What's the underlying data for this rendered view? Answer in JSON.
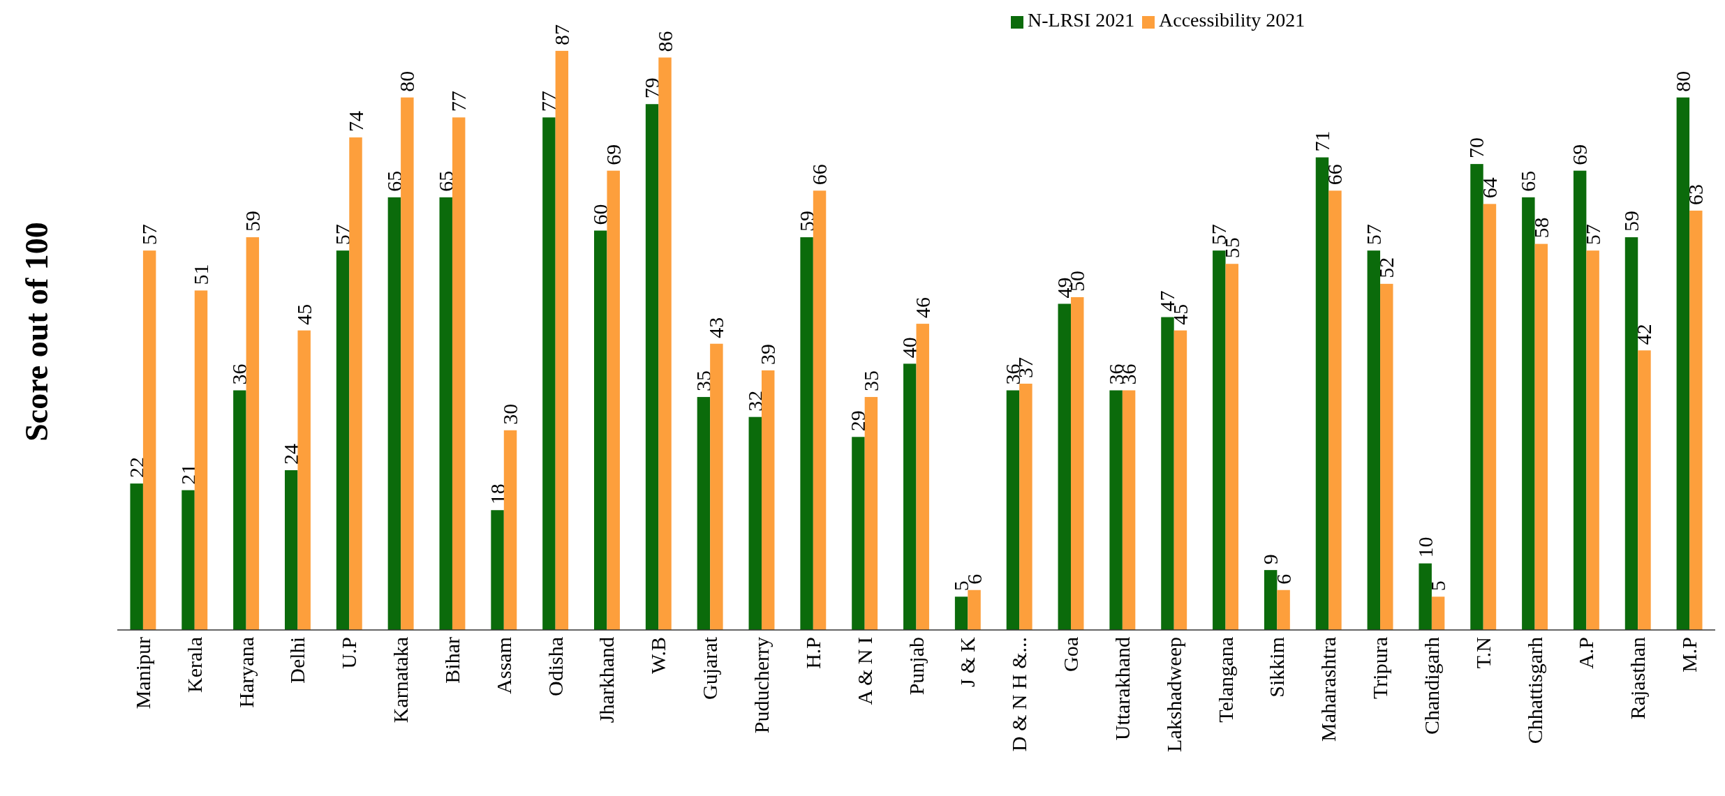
{
  "chart_data": {
    "type": "bar",
    "ylabel": "Score out of 100",
    "categories": [
      "Manipur",
      "Kerala",
      "Haryana",
      "Delhi",
      "U.P",
      "Karnataka",
      "Bihar",
      "Assam",
      "Odisha",
      "Jharkhand",
      "W.B",
      "Gujarat",
      "Puducherry",
      "H.P",
      "A & N I",
      "Punjab",
      "J & K",
      "D & N H &...",
      "Goa",
      "Uttarakhand",
      "Lakshadweep",
      "Telangana",
      "Sikkim",
      "Maharashtra",
      "Tripura",
      "Chandigarh",
      "T.N",
      "Chhattisgarh",
      "A.P",
      "Rajasthan",
      "M.P"
    ],
    "series": [
      {
        "name": "N-LRSI 2021",
        "color": "#0b6b0b",
        "values": [
          22,
          21,
          36,
          24,
          57,
          65,
          65,
          18,
          77,
          60,
          79,
          35,
          32,
          59,
          29,
          40,
          5,
          36,
          49,
          36,
          47,
          57,
          9,
          71,
          57,
          10,
          70,
          65,
          69,
          59,
          80
        ]
      },
      {
        "name": "Accessibility 2021",
        "color": "#fd9f3c",
        "values": [
          57,
          51,
          59,
          45,
          74,
          80,
          77,
          30,
          87,
          69,
          86,
          43,
          39,
          66,
          35,
          46,
          6,
          37,
          50,
          36,
          45,
          55,
          6,
          66,
          52,
          5,
          64,
          58,
          57,
          42,
          63
        ]
      }
    ],
    "tick_labels": "x",
    "data_labels": true,
    "legend": "top"
  }
}
